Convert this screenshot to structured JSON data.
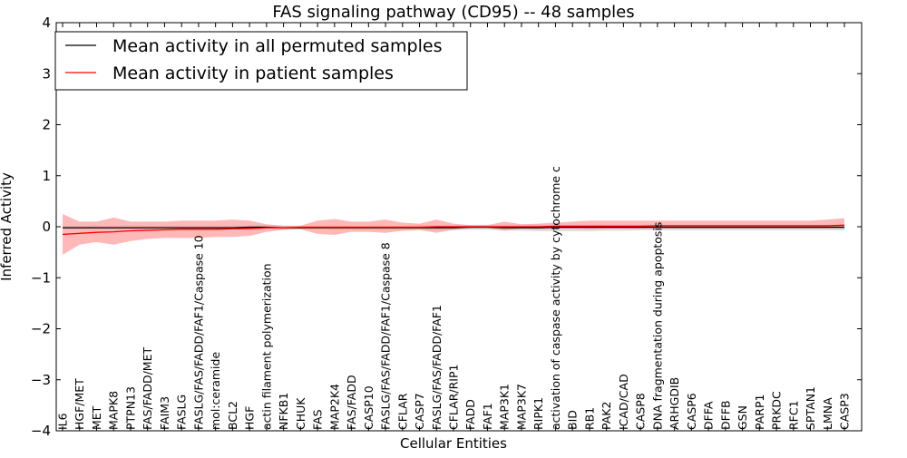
{
  "chart_data": {
    "type": "line",
    "title": "FAS signaling pathway (CD95) -- 48 samples",
    "xlabel": "Cellular Entities",
    "ylabel": "Inferred Activity",
    "ylim": [
      -4,
      4
    ],
    "yticks": [
      -4,
      -3,
      -2,
      -1,
      0,
      1,
      2,
      3,
      4
    ],
    "ytick_labels": [
      "−4",
      "−3",
      "−2",
      "−1",
      "0",
      "1",
      "2",
      "3",
      "4"
    ],
    "legend_position": "top-left",
    "categories": [
      "IL6",
      "HGF/MET",
      "MET",
      "MAPK8",
      "PTPN13",
      "FAS/FADD/MET",
      "FAIM3",
      "FASLG",
      "FASLG/FAS/FADD/FAF1/Caspase 10",
      "mol:ceramide",
      "BCL2",
      "HGF",
      "actin filament polymerization",
      "NFKB1",
      "CHUK",
      "FAS",
      "MAP2K4",
      "FAS/FADD",
      "CASP10",
      "FASLG/FAS/FADD/FAF1/Caspase 8",
      "CFLAR",
      "CASP7",
      "FASLG/FAS/FADD/FAF1",
      "CFLAR/RIP1",
      "FADD",
      "FAF1",
      "MAP3K1",
      "MAP3K7",
      "RIPK1",
      "activation of caspase activity by cytochrome c",
      "BID",
      "RB1",
      "PAK2",
      "ICAD/CAD",
      "CASP8",
      "DNA fragmentation during apoptosis",
      "ARHGDIB",
      "CASP6",
      "DFFA",
      "DFFB",
      "GSN",
      "PARP1",
      "PRKDC",
      "RFC1",
      "SPTAN1",
      "LMNA",
      "CASP3"
    ],
    "series": [
      {
        "name": "Mean activity in all permuted samples",
        "color": "#000000",
        "band_color": "#bbbbbb",
        "values": [
          -0.02,
          -0.02,
          -0.02,
          -0.02,
          -0.02,
          -0.02,
          -0.02,
          -0.02,
          -0.02,
          -0.02,
          -0.02,
          -0.01,
          -0.01,
          -0.02,
          -0.02,
          -0.02,
          -0.02,
          -0.02,
          -0.02,
          -0.02,
          -0.02,
          -0.02,
          -0.02,
          -0.02,
          -0.01,
          -0.01,
          -0.02,
          -0.02,
          -0.02,
          -0.01,
          -0.01,
          -0.01,
          -0.01,
          -0.01,
          -0.01,
          -0.01,
          -0.01,
          -0.01,
          -0.01,
          -0.01,
          -0.01,
          -0.01,
          -0.01,
          -0.01,
          -0.01,
          -0.01,
          -0.01
        ],
        "lower": [
          -0.05,
          -0.05,
          -0.05,
          -0.05,
          -0.05,
          -0.05,
          -0.05,
          -0.05,
          -0.05,
          -0.05,
          -0.05,
          -0.04,
          -0.04,
          -0.05,
          -0.05,
          -0.05,
          -0.06,
          -0.06,
          -0.06,
          -0.06,
          -0.06,
          -0.07,
          -0.07,
          -0.07,
          -0.06,
          -0.06,
          -0.07,
          -0.08,
          -0.09,
          -0.09,
          -0.09,
          -0.09,
          -0.08,
          -0.08,
          -0.07,
          -0.07,
          -0.07,
          -0.07,
          -0.07,
          -0.07,
          -0.07,
          -0.07,
          -0.07,
          -0.07,
          -0.07,
          -0.07,
          -0.07
        ],
        "upper": [
          0.02,
          0.02,
          0.02,
          0.02,
          0.02,
          0.02,
          0.02,
          0.02,
          0.02,
          0.02,
          0.02,
          0.03,
          0.03,
          0.02,
          0.02,
          0.02,
          0.02,
          0.02,
          0.02,
          0.02,
          0.02,
          0.03,
          0.03,
          0.03,
          0.04,
          0.04,
          0.04,
          0.04,
          0.04,
          0.04,
          0.04,
          0.04,
          0.04,
          0.04,
          0.04,
          0.04,
          0.04,
          0.04,
          0.04,
          0.04,
          0.04,
          0.04,
          0.04,
          0.04,
          0.04,
          0.04,
          0.04
        ]
      },
      {
        "name": "Mean activity in patient samples",
        "color": "#ff0000",
        "band_color": "#ff8888",
        "values": [
          -0.15,
          -0.13,
          -0.11,
          -0.1,
          -0.08,
          -0.07,
          -0.06,
          -0.05,
          -0.05,
          -0.05,
          -0.04,
          -0.04,
          -0.02,
          -0.02,
          -0.01,
          -0.01,
          -0.01,
          -0.01,
          -0.01,
          -0.01,
          -0.01,
          -0.01,
          0.0,
          0.0,
          0.0,
          0.0,
          0.0,
          0.0,
          0.0,
          0.01,
          0.01,
          0.01,
          0.01,
          0.01,
          0.01,
          0.02,
          0.02,
          0.02,
          0.02,
          0.02,
          0.02,
          0.02,
          0.02,
          0.02,
          0.02,
          0.02,
          0.03
        ],
        "lower": [
          -0.55,
          -0.35,
          -0.3,
          -0.35,
          -0.28,
          -0.24,
          -0.22,
          -0.22,
          -0.22,
          -0.2,
          -0.2,
          -0.18,
          -0.1,
          -0.06,
          -0.05,
          -0.14,
          -0.16,
          -0.1,
          -0.1,
          -0.12,
          -0.08,
          -0.06,
          -0.12,
          -0.06,
          -0.02,
          -0.02,
          -0.08,
          -0.04,
          -0.05,
          -0.04,
          -0.04,
          -0.05,
          -0.04,
          -0.04,
          -0.04,
          -0.03,
          -0.03,
          -0.03,
          -0.03,
          -0.03,
          -0.03,
          -0.03,
          -0.03,
          -0.03,
          -0.03,
          -0.03,
          -0.03
        ],
        "upper": [
          0.25,
          0.1,
          0.1,
          0.18,
          0.1,
          0.1,
          0.1,
          0.12,
          0.12,
          0.12,
          0.14,
          0.12,
          0.05,
          0.02,
          0.02,
          0.12,
          0.15,
          0.1,
          0.1,
          0.14,
          0.08,
          0.06,
          0.14,
          0.06,
          0.03,
          0.03,
          0.1,
          0.05,
          0.06,
          0.08,
          0.1,
          0.12,
          0.12,
          0.12,
          0.12,
          0.12,
          0.12,
          0.12,
          0.12,
          0.12,
          0.12,
          0.12,
          0.12,
          0.12,
          0.12,
          0.14,
          0.17
        ]
      }
    ]
  }
}
